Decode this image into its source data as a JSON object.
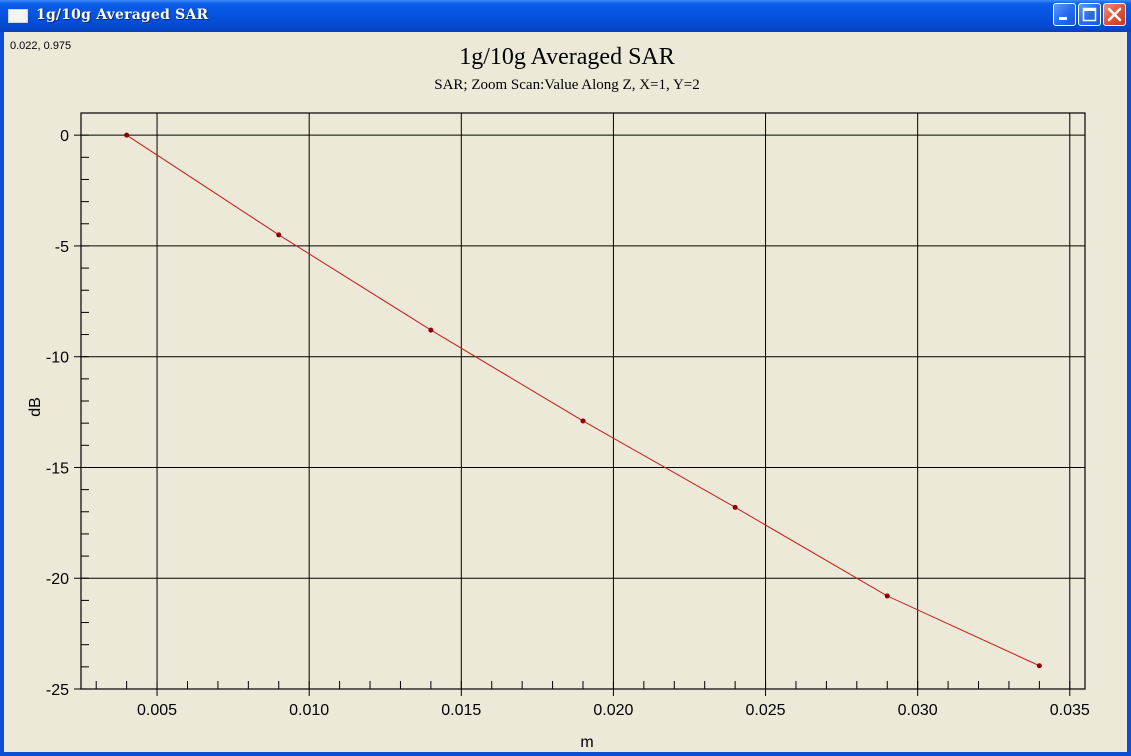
{
  "window": {
    "title": "1g/10g Averaged SAR",
    "icon": "app-window-icon",
    "buttons": [
      "minimize-icon",
      "maximize-icon",
      "close-icon"
    ]
  },
  "cursor_readout": "0.022, 0.975",
  "chart_data": {
    "type": "line",
    "title": "1g/10g Averaged SAR",
    "subtitle": "SAR; Zoom Scan:Value Along Z, X=1, Y=2",
    "xlabel": "m",
    "ylabel": "dB",
    "xlim": [
      0.0025,
      0.0355
    ],
    "ylim": [
      -25,
      1
    ],
    "x_ticks": [
      0.005,
      0.01,
      0.015,
      0.02,
      0.025,
      0.03,
      0.035
    ],
    "x_tick_labels": [
      "0.005",
      "0.010",
      "0.015",
      "0.020",
      "0.025",
      "0.030",
      "0.035"
    ],
    "y_ticks": [
      0,
      -5,
      -10,
      -15,
      -20,
      -25
    ],
    "y_tick_labels": [
      "0",
      "-5",
      "-10",
      "-15",
      "-20",
      "-25"
    ],
    "grid": true,
    "series": [
      {
        "color": "#cc1a1a",
        "x": [
          0.004,
          0.009,
          0.014,
          0.019,
          0.024,
          0.029,
          0.034
        ],
        "y": [
          0.0,
          -4.5,
          -8.8,
          -12.9,
          -16.8,
          -20.8,
          -23.95
        ]
      }
    ]
  }
}
